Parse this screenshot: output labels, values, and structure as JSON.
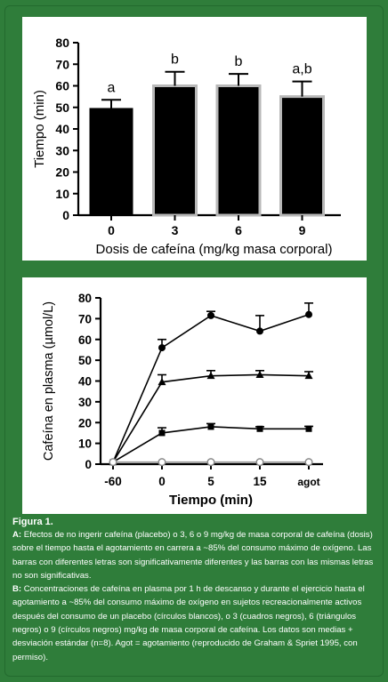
{
  "chart_data": [
    {
      "type": "bar",
      "ylabel": "Tiempo (min)",
      "xlabel": "Dosis de cafeína (mg/kg masa corporal)",
      "categories": [
        "0",
        "3",
        "6",
        "9"
      ],
      "values": [
        49.5,
        60,
        60,
        55
      ],
      "errors": [
        4,
        6.5,
        5.5,
        7
      ],
      "letters": [
        "a",
        "b",
        "b",
        "a,b"
      ],
      "ylim": [
        0,
        80
      ],
      "yticks": [
        "0",
        "10",
        "20",
        "30",
        "40",
        "50",
        "60",
        "70",
        "80"
      ],
      "colors": {
        "bar": "#000000",
        "bar_outline": "#b8b8b8"
      }
    },
    {
      "type": "line",
      "ylabel": "Cafeína en plasma (µmol/L)",
      "xlabel": "Tiempo (min)",
      "categories": [
        "-60",
        "0",
        "5",
        "15",
        "agot"
      ],
      "ylim": [
        0,
        80
      ],
      "yticks": [
        "0",
        "10",
        "20",
        "30",
        "40",
        "50",
        "60",
        "70",
        "80"
      ],
      "series": [
        {
          "marker": "circle-filled",
          "values": [
            1,
            56,
            71.5,
            64,
            72
          ],
          "errors": [
            0,
            4,
            2,
            7.5,
            5.5
          ]
        },
        {
          "marker": "triangle",
          "values": [
            1,
            39.5,
            42.5,
            43,
            42.5
          ],
          "errors": [
            0,
            3.5,
            2.5,
            2,
            2
          ]
        },
        {
          "marker": "square",
          "values": [
            1,
            15,
            18,
            17,
            17
          ],
          "errors": [
            0,
            2.5,
            1.5,
            1,
            1.2
          ]
        },
        {
          "marker": "circle-open",
          "values": [
            1,
            1,
            1,
            1,
            1
          ],
          "errors": [
            0,
            0,
            0,
            0,
            0
          ]
        }
      ]
    }
  ],
  "caption": {
    "title": "Figura 1.",
    "a_label": "A:",
    "a_text": "Efectos de no ingerir cafeína (placebo) o 3, 6 o 9 mg/kg de masa corporal de cafeína (dosis) sobre el tiempo hasta el agotamiento en carrera a ~85% del consumo máximo de oxígeno. Las barras con diferentes letras son significativamente diferentes y las barras con las mismas letras no son significativas.",
    "b_label": "B:",
    "b_text": "Concentraciones de cafeína en plasma por 1 h de descanso y durante el ejercicio hasta el agotamiento a ~85% del consumo máximo de oxígeno en sujetos recreacionalmente activos después del consumo de un placebo (círculos blancos), o 3 (cuadros negros), 6 (triángulos negros) o 9 (círculos negros) mg/kg de masa corporal de cafeína. Los datos son medias + desviación estándar (n=8). Agot = agotamiento (reproducido de Graham & Spriet 1995, con permiso)."
  }
}
